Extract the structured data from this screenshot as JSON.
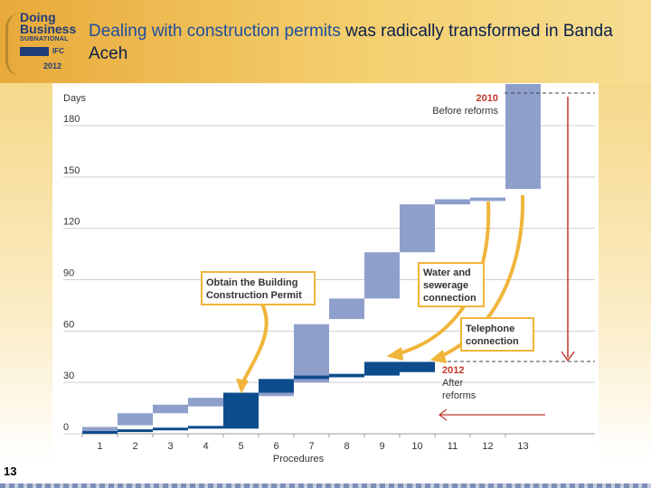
{
  "slide": {
    "title_part1": "Dealing with construction permits",
    "title_part2": " was radically transformed in Banda Aceh",
    "page_number": "13",
    "logo": {
      "line1": "Doing",
      "line2": "Business",
      "line3": "SUBNATIONAL",
      "line4": "IFC",
      "year": "2012"
    }
  },
  "colors": {
    "before": "#8f9fcc",
    "after": "#0d4c8c",
    "callout_border": "#f0b53a",
    "arrow": "#f0b53a",
    "year_label": "#c0392b"
  },
  "chart_data": {
    "type": "bar",
    "title": "",
    "ylabel": "Days",
    "xlabel": "Procedures",
    "ylim": [
      0,
      180
    ],
    "yticks": [
      0,
      30,
      60,
      90,
      120,
      150,
      180
    ],
    "categories": [
      "1",
      "2",
      "3",
      "4",
      "5",
      "6",
      "7",
      "8",
      "9",
      "10",
      "11",
      "12",
      "13"
    ],
    "series": [
      {
        "name": "2010 Before reforms",
        "start": [
          0,
          5,
          12,
          16,
          17,
          22,
          30,
          67,
          79,
          106,
          134,
          136,
          143
        ],
        "end": [
          4,
          12,
          17,
          21,
          22,
          30,
          64,
          79,
          106,
          134,
          137,
          138,
          205
        ]
      },
      {
        "name": "2012 After reforms",
        "start": [
          0,
          1,
          2,
          3,
          3,
          24,
          32,
          33,
          34,
          36
        ],
        "end": [
          1,
          2,
          3,
          3,
          24,
          32,
          34,
          35,
          42,
          42
        ]
      }
    ],
    "legend_2010": {
      "year": "2010",
      "label": "Before reforms"
    },
    "legend_2012": {
      "year": "2012",
      "label_line1": "After",
      "label_line2": "reforms"
    },
    "annotations": [
      {
        "line1": "Obtain the Building",
        "line2": "Construction Permit"
      },
      {
        "line1": "Water and",
        "line2": "sewerage",
        "line3": "connection"
      },
      {
        "line1": "Telephone",
        "line2": "connection"
      }
    ]
  }
}
